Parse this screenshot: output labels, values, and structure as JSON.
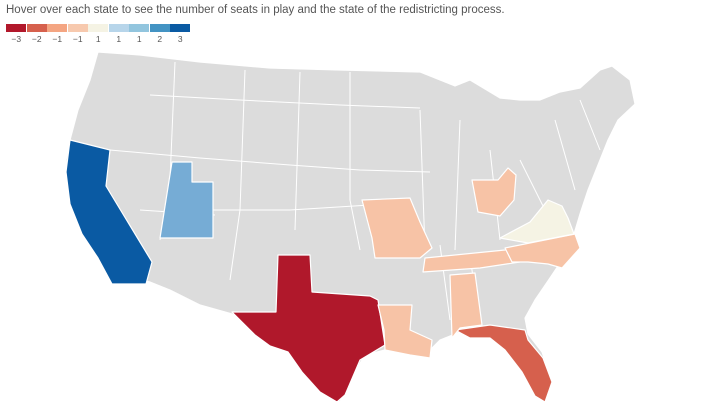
{
  "instruction": "Hover over each state to see the number of seats in play and the state of the redistricting process.",
  "legend": [
    {
      "label": "−3",
      "color": "#b2182b"
    },
    {
      "label": "−2",
      "color": "#d6604d"
    },
    {
      "label": "−1",
      "color": "#f4a582"
    },
    {
      "label": "−1",
      "color": "#f7c9ae"
    },
    {
      "label": "1",
      "color": "#f5f3e4"
    },
    {
      "label": "1",
      "color": "#b7d5ea"
    },
    {
      "label": "1",
      "color": "#92c5de"
    },
    {
      "label": "2",
      "color": "#4393c3"
    },
    {
      "label": "3",
      "color": "#0a5aa3"
    }
  ],
  "colors": {
    "neutral": "#dcdcdc",
    "california": "#0a5aa3",
    "utah": "#76acd5",
    "texas": "#b0182b",
    "florida": "#d6604d",
    "light_red": "#f7c3a6",
    "virginia": "#f5f3e4"
  },
  "states_highlighted": [
    {
      "name": "California",
      "color_key": "california",
      "value": 3
    },
    {
      "name": "Utah",
      "color_key": "utah",
      "value": 1
    },
    {
      "name": "Texas",
      "color_key": "texas",
      "value": -3
    },
    {
      "name": "Florida",
      "color_key": "florida",
      "value": -2
    },
    {
      "name": "Missouri",
      "color_key": "light_red",
      "value": -1
    },
    {
      "name": "Louisiana",
      "color_key": "light_red",
      "value": -1
    },
    {
      "name": "Alabama",
      "color_key": "light_red",
      "value": -1
    },
    {
      "name": "Tennessee",
      "color_key": "light_red",
      "value": -1
    },
    {
      "name": "North Carolina",
      "color_key": "light_red",
      "value": -1
    },
    {
      "name": "Ohio",
      "color_key": "light_red",
      "value": -1
    },
    {
      "name": "Virginia",
      "color_key": "virginia",
      "value": 1
    }
  ]
}
